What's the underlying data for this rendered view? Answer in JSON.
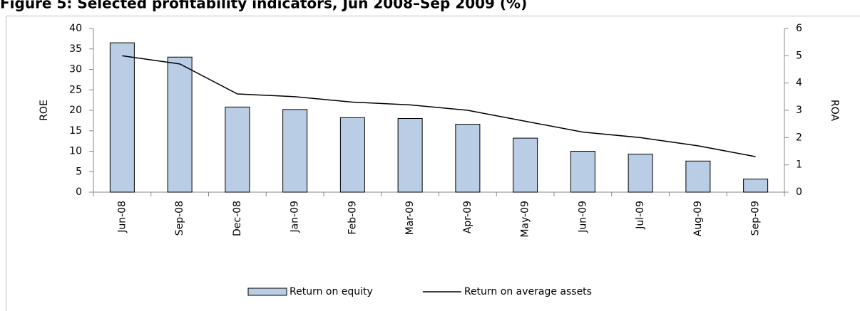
{
  "chart_data": {
    "type": "bar_line",
    "title": "Figure 5: Selected profitability indicators, Jun 2008–Sep 2009 (%)",
    "categories": [
      "Jun-08",
      "Sep-08",
      "Dec-08",
      "Jan-09",
      "Feb-09",
      "Mar-09",
      "Apr-09",
      "May-09",
      "Jun-09",
      "Jul-09",
      "Aug-09",
      "Sep-09"
    ],
    "series": [
      {
        "name": "Return on equity",
        "type": "bar",
        "color": "#b9cde5",
        "values": [
          36.5,
          33,
          20.8,
          20.2,
          18.2,
          18,
          16.6,
          13.2,
          10,
          9.3,
          7.6,
          3.2
        ]
      },
      {
        "name": "Return on average assets",
        "type": "line",
        "axis": "y2",
        "color": "#000000",
        "values": [
          5.0,
          4.7,
          3.6,
          3.5,
          3.3,
          3.2,
          3.0,
          2.6,
          2.2,
          2.0,
          1.7,
          1.3
        ]
      }
    ],
    "ylabel": "ROE",
    "y2label": "ROA",
    "ylim": [
      0,
      40
    ],
    "yticks": [
      0,
      5,
      10,
      15,
      20,
      25,
      30,
      35,
      40
    ],
    "y2lim": [
      0,
      6
    ],
    "y2ticks": [
      0,
      1,
      2,
      3,
      4,
      5,
      6
    ],
    "legend": "bottom"
  }
}
